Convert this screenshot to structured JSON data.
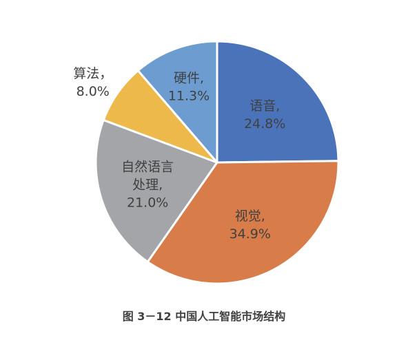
{
  "caption": "图 3－12  中国人工智能市场结构",
  "chart_data": {
    "type": "pie",
    "title": "",
    "slices": [
      {
        "name": "语音",
        "value": 24.8,
        "label": "语音,",
        "value_label": "24.8%",
        "color": "#4a73ba"
      },
      {
        "name": "视觉",
        "value": 34.9,
        "label": "视觉,",
        "value_label": "34.9%",
        "color": "#d87c4a"
      },
      {
        "name": "自然语言处理",
        "value": 21.0,
        "label": "自然语言|处理,",
        "value_label": "21.0%",
        "color": "#a3a5a8"
      },
      {
        "name": "算法",
        "value": 8.0,
        "label": "算法，",
        "value_label": "8.0%",
        "color": "#ecb94a"
      },
      {
        "name": "硬件",
        "value": 11.3,
        "label": "硬件,",
        "value_label": "11.3%",
        "color": "#6c9cd0"
      }
    ],
    "legend": "none"
  }
}
